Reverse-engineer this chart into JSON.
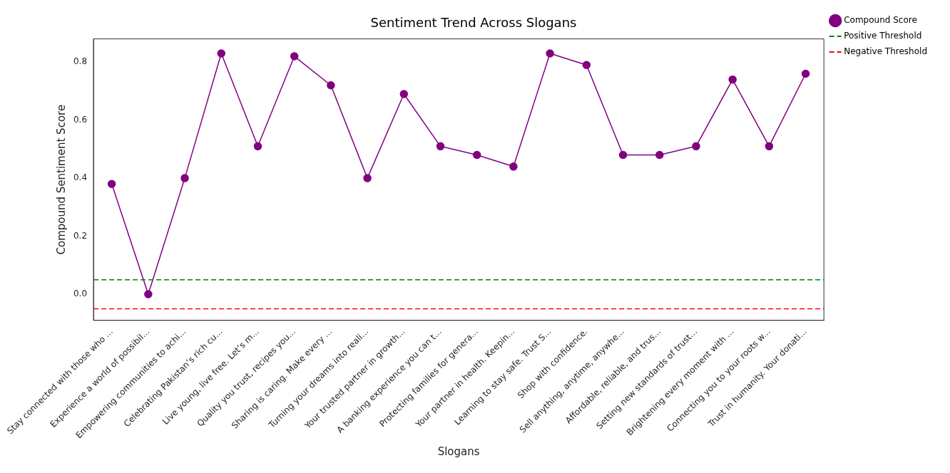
{
  "chart_data": {
    "type": "line",
    "title": "Sentiment Trend Across Slogans",
    "xlabel": "Slogans",
    "ylabel": "Compound Sentiment Score",
    "categories": [
      "Stay connected with those who ...",
      "Experience a world of possibil...",
      "Empowering communities to achi...",
      "Celebrating Pakistan’s rich cu...",
      "Live young, live free. Let’s m...",
      "Quality you trust, recipes you...",
      "Sharing is caring. Make every ...",
      "Turning your dreams into reali...",
      "Your trusted partner in growth...",
      "A banking experience you can t...",
      "Protecting families for genera...",
      "Your partner in health. Keepin...",
      "Learning to stay safe. Trust S...",
      "Shop with confidence.",
      "Sell anything, anytime, anywhe...",
      "Affordable, reliable, and trus...",
      "Setting new standards of trust...",
      "Brightening every moment with ...",
      "Connecting you to your roots w...",
      "Trust in humanity. Your donati..."
    ],
    "series": [
      {
        "name": "Compound Score",
        "color": "#800080",
        "values": [
          0.38,
          0.0,
          0.4,
          0.83,
          0.51,
          0.82,
          0.72,
          0.4,
          0.69,
          0.51,
          0.48,
          0.44,
          0.83,
          0.79,
          0.48,
          0.48,
          0.51,
          0.74,
          0.51,
          0.76
        ]
      }
    ],
    "ref_lines": [
      {
        "axis": "y",
        "value": 0.05,
        "label": "Positive Threshold",
        "color": "#008000",
        "line_style": "dashed"
      },
      {
        "axis": "y",
        "value": -0.05,
        "label": "Negative Threshold",
        "color": "#ff0000",
        "line_style": "dashed"
      }
    ],
    "ylim": [
      -0.09,
      0.88
    ],
    "yticks": [
      {
        "value": 0,
        "label": "0.0"
      },
      {
        "value": 0.2,
        "label": "0.2"
      },
      {
        "value": 0.4,
        "label": "0.4"
      },
      {
        "value": 0.6,
        "label": "0.6"
      },
      {
        "value": 0.8,
        "label": "0.8"
      }
    ],
    "marker": "circle",
    "line_style": "solid",
    "grid": false,
    "legend": "right"
  }
}
